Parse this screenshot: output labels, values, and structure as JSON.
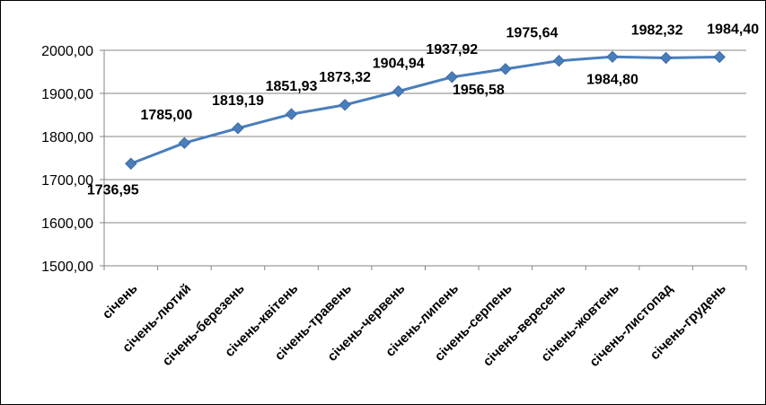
{
  "chart_data": {
    "type": "line",
    "categories": [
      "січень",
      "січень-лютий",
      "січень-березень",
      "січень-квітень",
      "січень-травень",
      "січень-червень",
      "січень-липень",
      "січень-серпень",
      "січень-вересень",
      "січень-жовтень",
      "січень-листопад",
      "січень-грудень"
    ],
    "series": [
      {
        "values": [
          1736.95,
          1785.0,
          1819.19,
          1851.93,
          1873.32,
          1904.94,
          1937.92,
          1956.58,
          1975.64,
          1984.8,
          1982.32,
          1984.4
        ]
      }
    ],
    "data_labels": [
      "1736,95",
      "1785,00",
      "1819,19",
      "1851,93",
      "1873,32",
      "1904,94",
      "1937,92",
      "1956,58",
      "1975,64",
      "1984,80",
      "1982,32",
      "1984,40"
    ],
    "yticks": [
      "1500,00",
      "1600,00",
      "1700,00",
      "1800,00",
      "1900,00",
      "2000,00"
    ],
    "ylim": [
      1500,
      2000
    ],
    "grid": true,
    "legend": "none",
    "colors": {
      "line": "#4a7ebb",
      "marker": "#4a7ebb",
      "grid": "#868686"
    }
  }
}
